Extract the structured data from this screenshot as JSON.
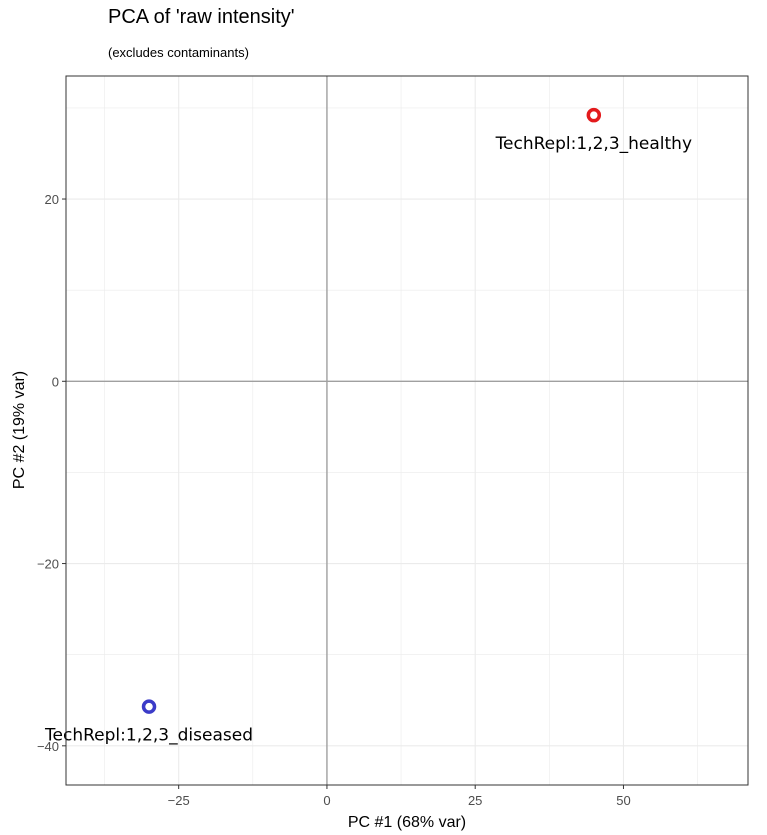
{
  "chart_data": {
    "type": "scatter",
    "title": "PCA of 'raw intensity'",
    "subtitle": "(excludes contaminants)",
    "xlabel": "PC #1 (68% var)",
    "ylabel": "PC #2 (19% var)",
    "xlim": [
      -44,
      71
    ],
    "ylim": [
      -44.3,
      33.5
    ],
    "xticks": [
      -25,
      0,
      25,
      50
    ],
    "yticks": [
      -40,
      -20,
      0,
      20
    ],
    "grid": true,
    "zero_lines": true,
    "points": [
      {
        "label": "TechRepl:1,2,3_healthy",
        "x": 45,
        "y": 29.2,
        "color": "#e31a1c"
      },
      {
        "label": "TechRepl:1,2,3_diseased",
        "x": -30,
        "y": -35.7,
        "color": "#3b3bc8"
      }
    ]
  }
}
